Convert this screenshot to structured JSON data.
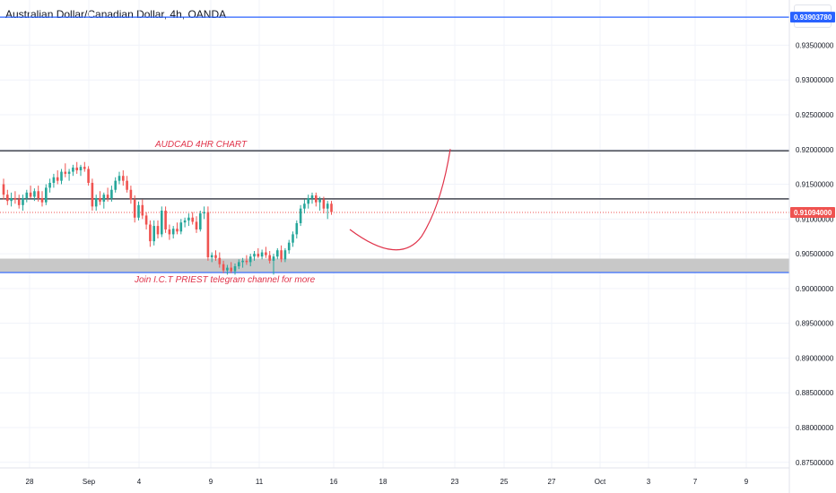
{
  "header": {
    "title": "Australian Dollar/Canadian Dollar, 4h, OANDA",
    "currency_label": "CAD"
  },
  "colors": {
    "up": "#26a69a",
    "down": "#ef5350",
    "text_red": "#e0334a",
    "blue_line": "#2962ff",
    "black_line": "#434651",
    "zone": "#c8c8c8",
    "grid": "#f0f3fa",
    "axis_text": "#131722"
  },
  "chart_data": {
    "type": "candlestick",
    "ylim": [
      0.8742,
      0.9415
    ],
    "y_ticks": [
      "0.93500000",
      "0.93000000",
      "0.92500000",
      "0.92000000",
      "0.91500000",
      "0.91000000",
      "0.90500000",
      "0.90000000",
      "0.89500000",
      "0.89000000",
      "0.88500000",
      "0.88000000",
      "0.87500000"
    ],
    "y_tick_values": [
      0.935,
      0.93,
      0.925,
      0.92,
      0.915,
      0.91,
      0.905,
      0.9,
      0.895,
      0.89,
      0.885,
      0.88,
      0.875
    ],
    "x_ticks": [
      "28",
      "Sep",
      "4",
      "9",
      "11",
      "16",
      "18",
      "23",
      "25",
      "27",
      "Oct",
      "3",
      "7",
      "9"
    ],
    "price_labels": [
      {
        "text": "0.93903780",
        "value": 0.9390378,
        "style": "blue"
      },
      {
        "text": "0.91094000",
        "value": 0.91094,
        "style": "red"
      }
    ],
    "horizontal_lines": [
      {
        "value": 0.9390378,
        "style": "blue"
      },
      {
        "value": 0.9198,
        "style": "black"
      },
      {
        "value": 0.9129,
        "style": "black"
      },
      {
        "value": 0.9023,
        "style": "blue"
      },
      {
        "value": 0.91094,
        "style": "dotted-red"
      }
    ],
    "zone": {
      "from": 0.9023,
      "to": 0.9043
    },
    "annotations": [
      {
        "text": "AUDCAD 4HR CHART",
        "price": 0.92
      },
      {
        "text": "Join  I.C.T PRIEST telegram channel for more",
        "price": 0.9005
      }
    ],
    "ohlc": [
      [
        0.915,
        0.9158,
        0.9128,
        0.9135
      ],
      [
        0.9135,
        0.9142,
        0.912,
        0.9126
      ],
      [
        0.9126,
        0.9138,
        0.9118,
        0.913
      ],
      [
        0.913,
        0.914,
        0.9122,
        0.9128
      ],
      [
        0.9128,
        0.9135,
        0.9115,
        0.912
      ],
      [
        0.912,
        0.9135,
        0.9112,
        0.913
      ],
      [
        0.913,
        0.9142,
        0.9124,
        0.9138
      ],
      [
        0.9138,
        0.9148,
        0.913,
        0.9132
      ],
      [
        0.9132,
        0.9144,
        0.9126,
        0.914
      ],
      [
        0.914,
        0.9148,
        0.9125,
        0.913
      ],
      [
        0.913,
        0.914,
        0.9118,
        0.9124
      ],
      [
        0.9124,
        0.915,
        0.912,
        0.9145
      ],
      [
        0.9145,
        0.9158,
        0.9138,
        0.9152
      ],
      [
        0.9152,
        0.9165,
        0.9145,
        0.916
      ],
      [
        0.916,
        0.917,
        0.915,
        0.9155
      ],
      [
        0.9155,
        0.9172,
        0.915,
        0.9168
      ],
      [
        0.9168,
        0.918,
        0.916,
        0.9165
      ],
      [
        0.9165,
        0.9172,
        0.9155,
        0.9168
      ],
      [
        0.9168,
        0.9178,
        0.9162,
        0.9174
      ],
      [
        0.9174,
        0.9182,
        0.9165,
        0.917
      ],
      [
        0.917,
        0.9178,
        0.9162,
        0.9175
      ],
      [
        0.9175,
        0.9182,
        0.9168,
        0.9172
      ],
      [
        0.9172,
        0.9176,
        0.9148,
        0.9152
      ],
      [
        0.9152,
        0.9158,
        0.9112,
        0.9118
      ],
      [
        0.9118,
        0.9135,
        0.9112,
        0.913
      ],
      [
        0.913,
        0.914,
        0.912,
        0.9125
      ],
      [
        0.9125,
        0.9138,
        0.9115,
        0.9135
      ],
      [
        0.9135,
        0.9145,
        0.9125,
        0.913
      ],
      [
        0.913,
        0.9148,
        0.9125,
        0.9142
      ],
      [
        0.9142,
        0.916,
        0.9138,
        0.9155
      ],
      [
        0.9155,
        0.9168,
        0.915,
        0.9162
      ],
      [
        0.9162,
        0.917,
        0.9148,
        0.9155
      ],
      [
        0.9155,
        0.9162,
        0.9138,
        0.9142
      ],
      [
        0.9142,
        0.9148,
        0.9122,
        0.9128
      ],
      [
        0.9128,
        0.9134,
        0.9095,
        0.9102
      ],
      [
        0.9102,
        0.9125,
        0.9098,
        0.912
      ],
      [
        0.912,
        0.9128,
        0.91,
        0.9105
      ],
      [
        0.9105,
        0.911,
        0.9085,
        0.9092
      ],
      [
        0.9092,
        0.9098,
        0.906,
        0.9068
      ],
      [
        0.9068,
        0.9098,
        0.9062,
        0.909
      ],
      [
        0.909,
        0.9098,
        0.9072,
        0.9078
      ],
      [
        0.9078,
        0.9118,
        0.9074,
        0.9112
      ],
      [
        0.9112,
        0.9118,
        0.908,
        0.9085
      ],
      [
        0.9085,
        0.9092,
        0.907,
        0.9078
      ],
      [
        0.9078,
        0.909,
        0.9072,
        0.9086
      ],
      [
        0.9086,
        0.9095,
        0.9078,
        0.9082
      ],
      [
        0.9082,
        0.91,
        0.9078,
        0.9095
      ],
      [
        0.9095,
        0.9102,
        0.9088,
        0.9098
      ],
      [
        0.9098,
        0.9108,
        0.909,
        0.9102
      ],
      [
        0.9102,
        0.911,
        0.9092,
        0.9096
      ],
      [
        0.9096,
        0.9104,
        0.908,
        0.9085
      ],
      [
        0.9085,
        0.9112,
        0.9082,
        0.9108
      ],
      [
        0.9108,
        0.9118,
        0.91,
        0.911
      ],
      [
        0.911,
        0.9118,
        0.904,
        0.9045
      ],
      [
        0.9045,
        0.9052,
        0.9038,
        0.9048
      ],
      [
        0.9048,
        0.9055,
        0.904,
        0.9044
      ],
      [
        0.9044,
        0.9052,
        0.903,
        0.9035
      ],
      [
        0.9035,
        0.904,
        0.9022,
        0.9026
      ],
      [
        0.9026,
        0.9034,
        0.902,
        0.903
      ],
      [
        0.903,
        0.9038,
        0.9022,
        0.9025
      ],
      [
        0.9025,
        0.9036,
        0.902,
        0.9032
      ],
      [
        0.9032,
        0.9042,
        0.9028,
        0.9038
      ],
      [
        0.9038,
        0.9044,
        0.903,
        0.904
      ],
      [
        0.904,
        0.9048,
        0.9034,
        0.9038
      ],
      [
        0.9038,
        0.905,
        0.9032,
        0.9046
      ],
      [
        0.9046,
        0.9054,
        0.904,
        0.905
      ],
      [
        0.905,
        0.9058,
        0.9044,
        0.9046
      ],
      [
        0.9046,
        0.9056,
        0.9042,
        0.9052
      ],
      [
        0.9052,
        0.906,
        0.9044,
        0.9048
      ],
      [
        0.9048,
        0.9054,
        0.9036,
        0.904
      ],
      [
        0.904,
        0.905,
        0.902,
        0.9046
      ],
      [
        0.9046,
        0.9058,
        0.9042,
        0.9055
      ],
      [
        0.9055,
        0.9062,
        0.9038,
        0.9042
      ],
      [
        0.9042,
        0.9058,
        0.9038,
        0.9055
      ],
      [
        0.9055,
        0.907,
        0.905,
        0.9066
      ],
      [
        0.9066,
        0.9082,
        0.906,
        0.9078
      ],
      [
        0.9078,
        0.9098,
        0.9072,
        0.9094
      ],
      [
        0.9094,
        0.912,
        0.909,
        0.9115
      ],
      [
        0.9115,
        0.9128,
        0.9108,
        0.9122
      ],
      [
        0.9122,
        0.9135,
        0.9115,
        0.913
      ],
      [
        0.913,
        0.9138,
        0.9122,
        0.9134
      ],
      [
        0.9134,
        0.9138,
        0.9118,
        0.9124
      ],
      [
        0.9124,
        0.9132,
        0.9112,
        0.9128
      ],
      [
        0.9128,
        0.9132,
        0.9108,
        0.9115
      ],
      [
        0.9115,
        0.9126,
        0.91,
        0.9122
      ],
      [
        0.9122,
        0.9126,
        0.9106,
        0.911
      ]
    ]
  }
}
